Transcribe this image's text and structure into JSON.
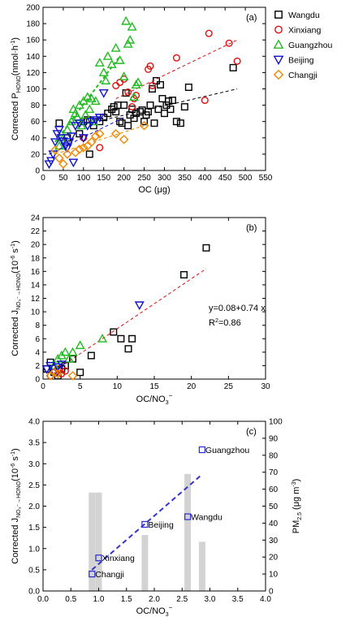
{
  "chart_data": [
    {
      "type": "scatter",
      "panel_label": "(a)",
      "xlabel": "OC (μg)",
      "ylabel": "Corrected Pₕₒₙₒ (nmol·h⁻¹)",
      "ylabel_main": "Corrected P",
      "ylabel_sub": "HONO",
      "ylabel_unit": "(nmol·h",
      "ylabel_sup": "-1",
      "ylabel_close": ")",
      "xlim": [
        0,
        550
      ],
      "ylim": [
        0,
        200
      ],
      "xticks": [
        0,
        50,
        100,
        150,
        200,
        250,
        300,
        350,
        400,
        450,
        500,
        550
      ],
      "yticks": [
        0,
        20,
        40,
        60,
        80,
        100,
        120,
        140,
        160,
        180,
        200
      ],
      "series": [
        {
          "name": "Wangdu",
          "marker": "square",
          "color": "#000000",
          "points": [
            [
              40,
              58
            ],
            [
              60,
              40
            ],
            [
              90,
              45
            ],
            [
              100,
              60
            ],
            [
              110,
              62
            ],
            [
              115,
              20
            ],
            [
              125,
              55
            ],
            [
              140,
              60
            ],
            [
              150,
              65
            ],
            [
              160,
              70
            ],
            [
              170,
              75
            ],
            [
              175,
              78
            ],
            [
              180,
              72
            ],
            [
              185,
              80
            ],
            [
              190,
              60
            ],
            [
              195,
              58
            ],
            [
              200,
              80
            ],
            [
              205,
              95
            ],
            [
              210,
              55
            ],
            [
              215,
              68
            ],
            [
              220,
              75
            ],
            [
              225,
              64
            ],
            [
              230,
              70
            ],
            [
              240,
              72
            ],
            [
              245,
              74
            ],
            [
              250,
              60
            ],
            [
              255,
              68
            ],
            [
              260,
              72
            ],
            [
              265,
              80
            ],
            [
              270,
              100
            ],
            [
              275,
              58
            ],
            [
              280,
              110
            ],
            [
              285,
              75
            ],
            [
              290,
              105
            ],
            [
              295,
              88
            ],
            [
              300,
              70
            ],
            [
              305,
              80
            ],
            [
              310,
              85
            ],
            [
              315,
              75
            ],
            [
              320,
              86
            ],
            [
              330,
              60
            ],
            [
              340,
              58
            ],
            [
              350,
              78
            ],
            [
              360,
              102
            ],
            [
              470,
              126
            ]
          ],
          "fit": [
            [
              150,
              62
            ],
            [
              480,
              100
            ]
          ]
        },
        {
          "name": "Xinxiang",
          "marker": "circle",
          "color": "#dd1111",
          "points": [
            [
              100,
              40
            ],
            [
              140,
              28
            ],
            [
              180,
              104
            ],
            [
              190,
              108
            ],
            [
              200,
              112
            ],
            [
              210,
              96
            ],
            [
              220,
              78
            ],
            [
              225,
              88
            ],
            [
              230,
              92
            ],
            [
              260,
              124
            ],
            [
              265,
              128
            ],
            [
              270,
              104
            ],
            [
              330,
              138
            ],
            [
              400,
              86
            ],
            [
              410,
              168
            ],
            [
              460,
              156
            ],
            [
              480,
              134
            ]
          ],
          "fit": [
            [
              180,
              88
            ],
            [
              480,
              160
            ]
          ]
        },
        {
          "name": "Guangzhou",
          "marker": "triangle-up",
          "color": "#22bb22",
          "points": [
            [
              40,
              30
            ],
            [
              50,
              40
            ],
            [
              60,
              50
            ],
            [
              70,
              60
            ],
            [
              75,
              75
            ],
            [
              80,
              70
            ],
            [
              85,
              65
            ],
            [
              90,
              80
            ],
            [
              95,
              55
            ],
            [
              100,
              85
            ],
            [
              105,
              68
            ],
            [
              110,
              90
            ],
            [
              115,
              75
            ],
            [
              120,
              88
            ],
            [
              125,
              60
            ],
            [
              130,
              85
            ],
            [
              140,
              132
            ],
            [
              150,
              120
            ],
            [
              155,
              110
            ],
            [
              160,
              140
            ],
            [
              170,
              130
            ],
            [
              180,
              150
            ],
            [
              190,
              135
            ],
            [
              200,
              115
            ],
            [
              205,
              183
            ],
            [
              210,
              155
            ],
            [
              215,
              160
            ],
            [
              220,
              176
            ],
            [
              225,
              90
            ],
            [
              230,
              105
            ],
            [
              235,
              108
            ]
          ],
          "fit": [
            [
              30,
              35
            ],
            [
              190,
              140
            ]
          ]
        },
        {
          "name": "Beijing",
          "marker": "triangle-down",
          "color": "#1111cc",
          "points": [
            [
              15,
              8
            ],
            [
              20,
              12
            ],
            [
              25,
              20
            ],
            [
              30,
              35
            ],
            [
              35,
              45
            ],
            [
              40,
              50
            ],
            [
              45,
              40
            ],
            [
              50,
              36
            ],
            [
              55,
              30
            ],
            [
              60,
              28
            ],
            [
              65,
              35
            ],
            [
              70,
              42
            ],
            [
              75,
              10
            ],
            [
              80,
              55
            ],
            [
              90,
              58
            ],
            [
              100,
              40
            ],
            [
              110,
              55
            ],
            [
              120,
              60
            ],
            [
              130,
              62
            ],
            [
              140,
              65
            ],
            [
              150,
              95
            ]
          ],
          "fit": [
            [
              15,
              20
            ],
            [
              200,
              65
            ]
          ]
        },
        {
          "name": "Changji",
          "marker": "diamond",
          "color": "#ee8800",
          "points": [
            [
              30,
              25
            ],
            [
              40,
              15
            ],
            [
              50,
              8
            ],
            [
              60,
              20
            ],
            [
              80,
              22
            ],
            [
              90,
              26
            ],
            [
              100,
              28
            ],
            [
              110,
              30
            ],
            [
              120,
              35
            ],
            [
              130,
              42
            ],
            [
              140,
              45
            ],
            [
              180,
              45
            ],
            [
              200,
              38
            ],
            [
              250,
              55
            ]
          ],
          "fit": [
            [
              30,
              20
            ],
            [
              250,
              55
            ]
          ]
        }
      ]
    },
    {
      "type": "scatter",
      "panel_label": "(b)",
      "xlabel_main": "OC/NO",
      "xlabel_sub": "3",
      "xlabel_sup": "−",
      "ylabel_main": "Corrected J",
      "ylabel_sub": "NO₃⁻→HONO",
      "ylabel_unit": "(10",
      "ylabel_sup": "-6",
      "ylabel_tail": " s",
      "ylabel_sup2": "-1",
      "ylabel_close": ")",
      "equation": "y=0.08+0.74 x",
      "r2_main": "R",
      "r2_sup": "2",
      "r2_val": "=0.86",
      "xlim": [
        0,
        30
      ],
      "ylim": [
        0,
        24
      ],
      "xticks": [
        0,
        5,
        10,
        15,
        20,
        25,
        30
      ],
      "yticks": [
        0,
        2,
        4,
        6,
        8,
        10,
        12,
        14,
        16,
        18,
        20,
        22,
        24
      ],
      "series": [
        {
          "name": "Wangdu",
          "marker": "square",
          "color": "#000000",
          "points": [
            [
              0.5,
              1.5
            ],
            [
              1,
              2.5
            ],
            [
              1.5,
              1
            ],
            [
              2,
              0.5
            ],
            [
              2.5,
              1.5
            ],
            [
              3,
              2
            ],
            [
              4,
              3
            ],
            [
              5,
              1
            ],
            [
              6.5,
              3.5
            ],
            [
              9.5,
              7
            ],
            [
              10.5,
              6
            ],
            [
              11.5,
              4.5
            ],
            [
              12,
              6
            ],
            [
              19,
              15.5
            ],
            [
              22,
              19.5
            ]
          ]
        },
        {
          "name": "Xinxiang",
          "marker": "circle",
          "color": "#dd1111",
          "points": [
            [
              1,
              0.5
            ],
            [
              1.5,
              1
            ],
            [
              2,
              1.5
            ],
            [
              2.5,
              0.8
            ],
            [
              3,
              1.2
            ]
          ]
        },
        {
          "name": "Guangzhou",
          "marker": "triangle-up",
          "color": "#22bb22",
          "points": [
            [
              1.5,
              2
            ],
            [
              2,
              3
            ],
            [
              2.5,
              3.5
            ],
            [
              3,
              4
            ],
            [
              3.5,
              3
            ],
            [
              4,
              4
            ],
            [
              5,
              5
            ],
            [
              8,
              6
            ]
          ]
        },
        {
          "name": "Beijing",
          "marker": "triangle-down",
          "color": "#1111cc",
          "points": [
            [
              0.5,
              1.5
            ],
            [
              1,
              2
            ],
            [
              1.5,
              1
            ],
            [
              2,
              1.8
            ],
            [
              2.5,
              2.2
            ],
            [
              13,
              11
            ]
          ]
        },
        {
          "name": "Changji",
          "marker": "diamond",
          "color": "#ee8800",
          "points": [
            [
              1,
              0.5
            ],
            [
              1.5,
              1
            ],
            [
              2,
              0.8
            ],
            [
              4,
              0.5
            ]
          ]
        }
      ],
      "fit": [
        [
          1,
          0.8
        ],
        [
          22,
          16.4
        ]
      ]
    },
    {
      "type": "scatter+bar",
      "panel_label": "(c)",
      "xlabel_main": "OC/NO",
      "xlabel_sub": "3",
      "xlabel_sup": "−",
      "ylabel_main": "Corrected J",
      "ylabel_sub": "NO₃⁻→HONO",
      "ylabel_unit": "(10",
      "ylabel_sup": "-6",
      "ylabel_tail": " s",
      "ylabel_sup2": "-1",
      "ylabel_close": ")",
      "y2label_main": "PM",
      "y2label_sub": "2.5",
      "y2label_unit": " (μg m",
      "y2label_sup": "-3",
      "y2label_close": ")",
      "xlim": [
        0,
        4
      ],
      "ylim": [
        0,
        4
      ],
      "y2lim": [
        0,
        100
      ],
      "xticks": [
        "0.0",
        "0.5",
        "1.0",
        "1.5",
        "2.0",
        "2.5",
        "3.0",
        "3.5",
        "4.0"
      ],
      "yticks": [
        "0.0",
        "0.5",
        "1.0",
        "1.5",
        "2.0",
        "2.5",
        "3.0",
        "3.5",
        "4.0"
      ],
      "y2ticks": [
        "0",
        "10",
        "20",
        "30",
        "40",
        "50",
        "60",
        "70",
        "80",
        "90",
        "100"
      ],
      "points": [
        {
          "label": "Guangzhou",
          "x": 2.86,
          "y": 3.33
        },
        {
          "label": "Wangdu",
          "x": 2.6,
          "y": 1.75
        },
        {
          "label": "Beijing",
          "x": 1.83,
          "y": 1.57
        },
        {
          "label": "Xinxiang",
          "x": 1.0,
          "y": 0.78
        },
        {
          "label": "Changji",
          "x": 0.88,
          "y": 0.4
        }
      ],
      "bars": [
        {
          "x": 0.88,
          "pm": 58
        },
        {
          "x": 1.0,
          "pm": 58
        },
        {
          "x": 1.83,
          "pm": 33
        },
        {
          "x": 2.6,
          "pm": 69
        },
        {
          "x": 2.86,
          "pm": 29
        }
      ],
      "fit": [
        [
          0.88,
          0.5
        ],
        [
          2.86,
          2.75
        ]
      ],
      "colors": {
        "point": "#3333cc",
        "bar": "#d3d3d3",
        "axis_y_left": "#2222aa",
        "axis_y_right": "#888888"
      }
    }
  ]
}
